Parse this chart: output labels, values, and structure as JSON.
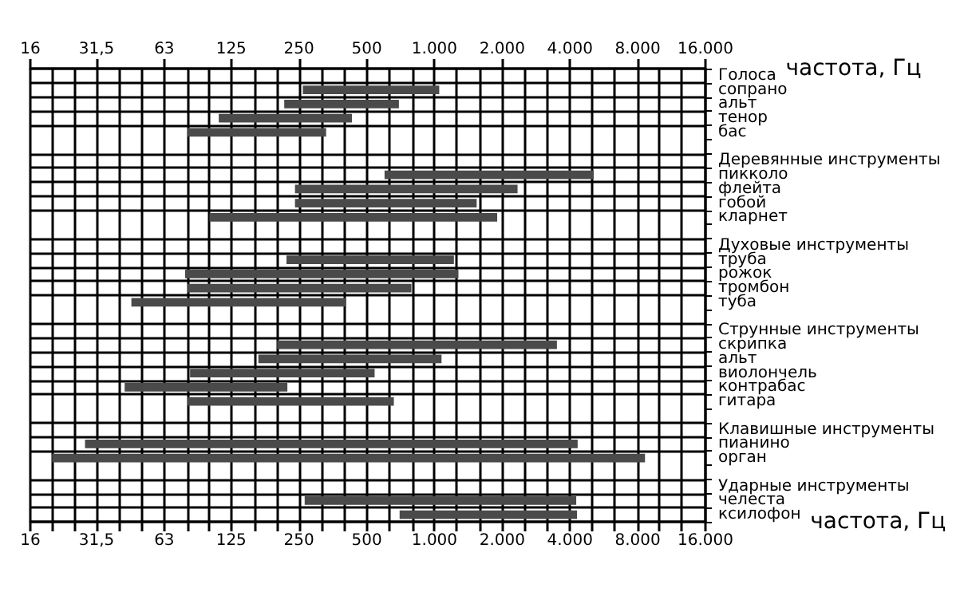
{
  "chart_data": {
    "type": "bar",
    "orientation": "horizontal",
    "xlabel": "частота, Гц",
    "log": "x",
    "grid": true,
    "color": "#4a4a4a",
    "categories": [
      "Голоса",
      "сопрано",
      "альт",
      "тенор",
      "бас",
      null,
      "Деревянные инструменты",
      "пикколо",
      "флейта",
      "гобой",
      "кларнет",
      null,
      "Духовые инструменты",
      "труба",
      "рожок",
      "тромбон",
      "туба",
      null,
      "Струнные инструменты",
      "скрипка",
      "альт",
      "виолончель",
      "контрабас",
      "гитара",
      null,
      "Клавишные инструменты",
      "пианино",
      "орган",
      null,
      "Ударные инструменты",
      "челеста",
      "ксилофон"
    ],
    "base": [
      null,
      260,
      215,
      110,
      80,
      null,
      null,
      600,
      240,
      240,
      100,
      null,
      null,
      220,
      78,
      80,
      45,
      null,
      null,
      200,
      165,
      82,
      42,
      80,
      null,
      null,
      28,
      20,
      null,
      null,
      265,
      700
    ],
    "values": [
      null,
      790,
      480,
      320,
      250,
      null,
      null,
      4500,
      2100,
      1300,
      1800,
      null,
      null,
      1000,
      1200,
      710,
      360,
      null,
      null,
      3300,
      910,
      460,
      180,
      580,
      null,
      null,
      4300,
      8600,
      null,
      null,
      4000,
      3600
    ],
    "xlim": [
      16,
      16000
    ],
    "xticks": [
      {
        "value": 16,
        "label": "16"
      },
      {
        "value": 20,
        "label": null
      },
      {
        "value": 25,
        "label": null
      },
      {
        "value": 31.5,
        "label": "31,5"
      },
      {
        "value": 40,
        "label": null
      },
      {
        "value": 50,
        "label": null
      },
      {
        "value": 63,
        "label": "63"
      },
      {
        "value": 80,
        "label": null
      },
      {
        "value": 100,
        "label": null
      },
      {
        "value": 125,
        "label": "125"
      },
      {
        "value": 160,
        "label": null
      },
      {
        "value": 200,
        "label": null
      },
      {
        "value": 250,
        "label": "250"
      },
      {
        "value": 315,
        "label": null
      },
      {
        "value": 400,
        "label": null
      },
      {
        "value": 500,
        "label": "500"
      },
      {
        "value": 630,
        "label": null
      },
      {
        "value": 800,
        "label": null
      },
      {
        "value": 1000,
        "label": "1.000"
      },
      {
        "value": 1250,
        "label": null
      },
      {
        "value": 1600,
        "label": null
      },
      {
        "value": 2000,
        "label": "2.000"
      },
      {
        "value": 2500,
        "label": null
      },
      {
        "value": 3150,
        "label": null
      },
      {
        "value": 4000,
        "label": "4.000"
      },
      {
        "value": 5000,
        "label": null
      },
      {
        "value": 6300,
        "label": null
      },
      {
        "value": 8000,
        "label": "8.000"
      },
      {
        "value": 10000,
        "label": null
      },
      {
        "value": 12500,
        "label": null
      },
      {
        "value": 16000,
        "label": "16.000"
      }
    ]
  }
}
